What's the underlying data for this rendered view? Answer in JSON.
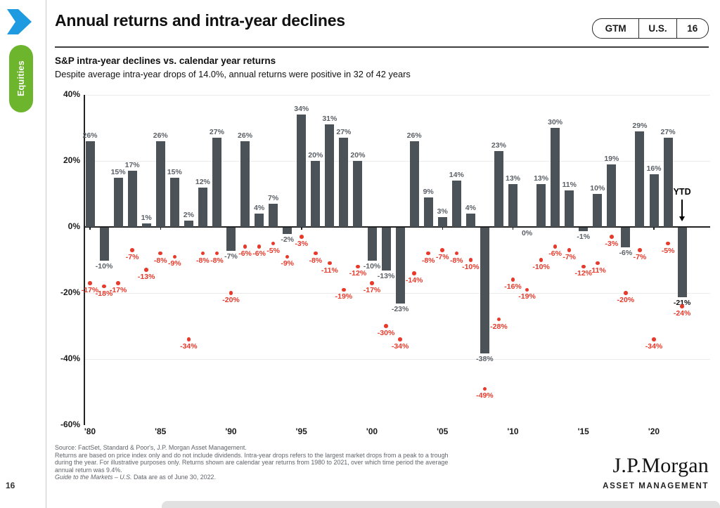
{
  "header": {
    "title": "Annual returns and intra-year declines",
    "badges": [
      "GTM",
      "U.S.",
      "16"
    ]
  },
  "sidebar": {
    "section_label": "Equities",
    "page_number": "16"
  },
  "chart_heading": "S&P intra-year declines vs. calendar year returns",
  "chart_subheading": "Despite average intra-year drops of 14.0%, annual returns were positive in 32 of 42 years",
  "chart_data": {
    "type": "bar",
    "title": "S&P intra-year declines vs. calendar year returns",
    "subtitle": "Despite average intra-year drops of 14.0%, annual returns were positive in 32 of 42 years",
    "x": [
      "1980",
      "1981",
      "1982",
      "1983",
      "1984",
      "1985",
      "1986",
      "1987",
      "1988",
      "1989",
      "1990",
      "1991",
      "1992",
      "1993",
      "1994",
      "1995",
      "1996",
      "1997",
      "1998",
      "1999",
      "2000",
      "2001",
      "2002",
      "2003",
      "2004",
      "2005",
      "2006",
      "2007",
      "2008",
      "2009",
      "2010",
      "2011",
      "2012",
      "2013",
      "2014",
      "2015",
      "2016",
      "2017",
      "2018",
      "2019",
      "2020",
      "2021",
      "2022 YTD"
    ],
    "series": [
      {
        "name": "Calendar year return",
        "style": "bar",
        "values": [
          26,
          -10,
          15,
          17,
          1,
          26,
          15,
          2,
          12,
          27,
          -7,
          26,
          4,
          7,
          -2,
          34,
          20,
          31,
          27,
          20,
          -10,
          -13,
          -23,
          26,
          9,
          3,
          14,
          4,
          -38,
          23,
          13,
          0,
          13,
          30,
          11,
          -1,
          10,
          19,
          -6,
          29,
          16,
          27,
          -21
        ]
      },
      {
        "name": "Intra-year decline",
        "style": "scatter",
        "values": [
          -17,
          -18,
          -17,
          -7,
          -13,
          -8,
          -9,
          -34,
          -8,
          -8,
          -20,
          -6,
          -6,
          -5,
          -9,
          -3,
          -8,
          -11,
          -19,
          -12,
          -17,
          -30,
          -34,
          -14,
          -8,
          -7,
          -8,
          -10,
          -49,
          -28,
          -16,
          -19,
          -10,
          -6,
          -7,
          -12,
          -11,
          -3,
          -20,
          -7,
          -34,
          -5,
          -24
        ]
      }
    ],
    "ylim": [
      -60,
      40
    ],
    "yticks": [
      40,
      20,
      0,
      -20,
      -40,
      -60
    ],
    "ytick_labels": [
      "40%",
      "20%",
      "0%",
      "-20%",
      "-40%",
      "-60%"
    ],
    "xtick_indices": [
      0,
      5,
      10,
      15,
      20,
      25,
      30,
      35,
      40
    ],
    "xtick_labels": [
      "'80",
      "'85",
      "'90",
      "'95",
      "'00",
      "'05",
      "'10",
      "'15",
      "'20"
    ],
    "gridline_values": [
      40,
      20,
      -20,
      -40
    ],
    "ytd_annotation": "YTD",
    "ytd_index": 42,
    "label_suffix": "%",
    "legend_position": "none",
    "colors": {
      "bar": "#4b5258",
      "bar_label": "#5b6167",
      "dot": "#e8392a",
      "ytd_label": "#151515"
    }
  },
  "footer": {
    "lines": [
      "Source: FactSet, Standard & Poor's, J.P. Morgan Asset Management.",
      "Returns are based on price index only and do not include dividends. Intra-year drops refers to the largest market drops from a peak to a trough",
      "during the year. For illustrative purposes only. Returns shown are calendar year returns from 1980 to 2021, over which time period the average",
      "annual return was 9.4%."
    ],
    "guide_italic": "Guide to the Markets – U.S.",
    "guide_rest": " Data are as of June 30, 2022.",
    "logo_line1": "J.P.Morgan",
    "logo_line2": "ASSET MANAGEMENT"
  }
}
